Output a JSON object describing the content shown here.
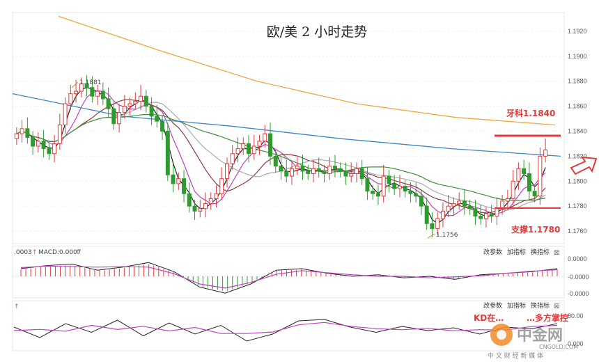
{
  "title": "欧/美 2 小时走势",
  "colors": {
    "up": "#e03a3a",
    "down": "#2e9b2e",
    "ma_fast": "#222222",
    "ma_mid": "#c040c0",
    "ma_slow": "#8a3a3a",
    "ma_green": "#3a8f3a",
    "ma_blue": "#3a86c8",
    "ma_orange": "#f0a640",
    "ma_gray": "#aaaaaa",
    "resistance": "#e03a3a"
  },
  "annotations": {
    "high_label": "1.1881",
    "low_label": "1.1756",
    "resistance_label": "牙科1.1840",
    "support_label": "支撑1.1780",
    "kd_text": "KD在…",
    "kd_text2": "…多方掌控"
  },
  "toolbar": {
    "modify_params": "改参数",
    "add_indicator": "加指标",
    "switch_indicator": "换指标",
    "close": "☒"
  },
  "macd_panel": {
    "prefix": ".0003",
    "label": "MACD:0.0007",
    "ticks": [
      "0.0000",
      "-0.0000",
      "-0.0000"
    ]
  },
  "kd_panel": {
    "ticks": [
      "80.00",
      "0.000"
    ]
  },
  "watermark": {
    "brand": "中金网",
    "site": "CNGOLD.COM",
    "slogan": "中 文 财 经 新 媒 体"
  },
  "chart_data": {
    "type": "candlestick",
    "title": "欧/美 2 小时走势",
    "ylim": [
      1.175,
      1.1935
    ],
    "y_ticks": [
      "1.1920",
      "1.1900",
      "1.1880",
      "1.1860",
      "1.1840",
      "1.1820",
      "1.1800",
      "1.1780",
      "1.1760"
    ],
    "levels": {
      "resistance": 1.184,
      "support": 1.178,
      "high": 1.1881,
      "low": 1.1756
    },
    "closes": [
      1.1838,
      1.1842,
      1.1835,
      1.1828,
      1.1832,
      1.1826,
      1.1822,
      1.183,
      1.1845,
      1.1862,
      1.187,
      1.1872,
      1.1878,
      1.1875,
      1.1868,
      1.1872,
      1.1866,
      1.1858,
      1.1846,
      1.1855,
      1.186,
      1.1862,
      1.1864,
      1.1868,
      1.186,
      1.1852,
      1.1848,
      1.184,
      1.1805,
      1.1798,
      1.1802,
      1.179,
      1.178,
      1.1776,
      1.1778,
      1.1782,
      1.1786,
      1.179,
      1.1802,
      1.1814,
      1.1822,
      1.1826,
      1.183,
      1.1822,
      1.1828,
      1.1832,
      1.1838,
      1.182,
      1.1812,
      1.1808,
      1.1804,
      1.181,
      1.1812,
      1.1808,
      1.1806,
      1.181,
      1.1808,
      1.1806,
      1.1812,
      1.181,
      1.1808,
      1.1804,
      1.1806,
      1.181,
      1.1802,
      1.1792,
      1.179,
      1.1788,
      1.1804,
      1.1798,
      1.1794,
      1.1796,
      1.1792,
      1.179,
      1.1788,
      1.178,
      1.1766,
      1.1762,
      1.177,
      1.1776,
      1.178,
      1.1782,
      1.1784,
      1.178,
      1.1778,
      1.1772,
      1.177,
      1.1774,
      1.1772,
      1.1778,
      1.1784,
      1.1786,
      1.18,
      1.181,
      1.1806,
      1.1792,
      1.1788,
      1.182,
      1.1825
    ],
    "ma_orange": [
      1.1932,
      1.1905,
      1.188,
      1.1862,
      1.1851,
      1.1845
    ],
    "ma_blue": [
      1.187,
      1.1852,
      1.1844,
      1.1834,
      1.1826,
      1.182
    ],
    "macd": [
      0.5,
      0.7,
      0.8,
      0.4,
      0.6,
      0.9,
      0.3,
      -0.7,
      -1.1,
      -0.5,
      0.4,
      0.5,
      0.2,
      0.0,
      0.1,
      -0.1,
      0.0,
      -0.2,
      0.1,
      0.2,
      0.3,
      0.5
    ],
    "kd": [
      60,
      30,
      70,
      45,
      80,
      35,
      72,
      40,
      65,
      20,
      40,
      78,
      82,
      60,
      45,
      62,
      50,
      58,
      40,
      60,
      55,
      70
    ]
  }
}
